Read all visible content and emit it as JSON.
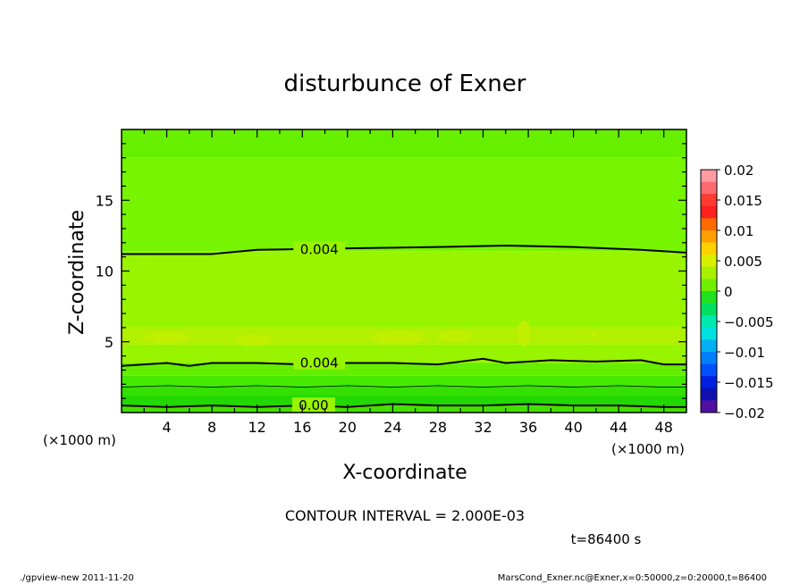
{
  "chart_data": {
    "type": "contour",
    "title": "disturbunce of Exner",
    "xlabel": "X-coordinate",
    "ylabel": "Z-coordinate",
    "x_unit_left": "(×1000 m)",
    "x_unit_right": "(×1000 m)",
    "xlim": [
      0,
      50
    ],
    "ylim": [
      0,
      20
    ],
    "xticks": [
      4,
      8,
      12,
      16,
      20,
      24,
      28,
      32,
      36,
      40,
      44,
      48
    ],
    "yticks": [
      5,
      10,
      15
    ],
    "contour_interval_text": "CONTOUR INTERVAL = 2.000E-03",
    "time_text": "t=86400 s",
    "footer_left": "./gpview-new  2011-11-20",
    "footer_right": "MarsCond_Exner.nc@Exner,x=0:50000,z=0:20000,t=86400",
    "contour_labels": [
      {
        "text": "0.004",
        "x": 17.5,
        "z": 11.5
      },
      {
        "text": "0.004",
        "x": 17.5,
        "z": 3.5
      },
      {
        "text": "0.00",
        "x": 17,
        "z": 0.5
      }
    ],
    "contour_lines": [
      {
        "level": 0.004,
        "style": "thick",
        "points": [
          [
            0,
            11.2
          ],
          [
            8,
            11.2
          ],
          [
            12,
            11.5
          ],
          [
            20,
            11.6
          ],
          [
            28,
            11.7
          ],
          [
            34,
            11.8
          ],
          [
            40,
            11.7
          ],
          [
            46,
            11.5
          ],
          [
            50,
            11.3
          ]
        ]
      },
      {
        "level": 0.004,
        "style": "thick",
        "points": [
          [
            0,
            3.3
          ],
          [
            4,
            3.5
          ],
          [
            6,
            3.3
          ],
          [
            8,
            3.5
          ],
          [
            12,
            3.5
          ],
          [
            16,
            3.4
          ],
          [
            20,
            3.5
          ],
          [
            24,
            3.5
          ],
          [
            28,
            3.4
          ],
          [
            32,
            3.8
          ],
          [
            34,
            3.5
          ],
          [
            38,
            3.7
          ],
          [
            42,
            3.6
          ],
          [
            46,
            3.7
          ],
          [
            48,
            3.4
          ],
          [
            50,
            3.4
          ]
        ]
      },
      {
        "level": 0.002,
        "style": "thin",
        "points": [
          [
            0,
            1.8
          ],
          [
            4,
            1.9
          ],
          [
            8,
            1.8
          ],
          [
            12,
            1.9
          ],
          [
            16,
            1.8
          ],
          [
            20,
            1.9
          ],
          [
            24,
            1.8
          ],
          [
            28,
            1.9
          ],
          [
            32,
            1.8
          ],
          [
            36,
            1.9
          ],
          [
            40,
            1.8
          ],
          [
            44,
            1.9
          ],
          [
            48,
            1.8
          ],
          [
            50,
            1.8
          ]
        ]
      },
      {
        "level": 0.0,
        "style": "thick",
        "points": [
          [
            0,
            0.5
          ],
          [
            4,
            0.4
          ],
          [
            8,
            0.5
          ],
          [
            12,
            0.4
          ],
          [
            16,
            0.5
          ],
          [
            20,
            0.4
          ],
          [
            24,
            0.6
          ],
          [
            28,
            0.5
          ],
          [
            32,
            0.5
          ],
          [
            36,
            0.6
          ],
          [
            40,
            0.5
          ],
          [
            44,
            0.5
          ],
          [
            48,
            0.4
          ],
          [
            50,
            0.4
          ]
        ]
      }
    ],
    "colorbar": {
      "labels": [
        "0.02",
        "0.015",
        "0.01",
        "0.005",
        "0",
        "−0.005",
        "−0.01",
        "−0.015",
        "−0.02"
      ],
      "levels": [
        0.02,
        0.018,
        0.016,
        0.014,
        0.012,
        0.01,
        0.008,
        0.006,
        0.004,
        0.002,
        0,
        -0.002,
        -0.004,
        -0.006,
        -0.008,
        -0.01,
        -0.012,
        -0.014,
        -0.016,
        -0.018,
        -0.02
      ],
      "colors": [
        "#ff9aa0",
        "#ff6a70",
        "#ff3a30",
        "#ff2020",
        "#ff6a00",
        "#ffa000",
        "#ffd000",
        "#d8f000",
        "#a6f000",
        "#70f000",
        "#20e020",
        "#00e060",
        "#00e8b0",
        "#00e0e0",
        "#00b0f0",
        "#0080ff",
        "#0050ff",
        "#0020e0",
        "#1010b0",
        "#5010a0"
      ]
    },
    "fill_bands": [
      {
        "z0": 18,
        "z1": 20,
        "color": "#66f000"
      },
      {
        "z0": 11.4,
        "z1": 18,
        "color": "#77f400"
      },
      {
        "z0": 6,
        "z1": 11.4,
        "color": "#99f400"
      },
      {
        "z0": 4.8,
        "z1": 6,
        "color": "#b0f000"
      },
      {
        "z0": 3.5,
        "z1": 4.8,
        "color": "#99f400"
      },
      {
        "z0": 2.6,
        "z1": 3.5,
        "color": "#66ee00"
      },
      {
        "z0": 1.9,
        "z1": 2.6,
        "color": "#44e800"
      },
      {
        "z0": 1.2,
        "z1": 1.9,
        "color": "#33e000"
      },
      {
        "z0": 0.5,
        "z1": 1.2,
        "color": "#22d800"
      },
      {
        "z0": 0,
        "z1": 0.5,
        "color": "#44e000"
      }
    ],
    "blobs": [
      {
        "x": 2,
        "z": 5.3,
        "w": 4,
        "h": 0.9,
        "color": "#c0f000"
      },
      {
        "x": 10,
        "z": 5.1,
        "w": 3.5,
        "h": 0.8,
        "color": "#c0f000"
      },
      {
        "x": 22,
        "z": 5.3,
        "w": 5,
        "h": 1.0,
        "color": "#c0f000"
      },
      {
        "x": 28,
        "z": 5.4,
        "w": 3,
        "h": 0.8,
        "color": "#c0f000"
      },
      {
        "x": 35,
        "z": 5.6,
        "w": 1.2,
        "h": 1.8,
        "color": "#c0f000"
      },
      {
        "x": 41.5,
        "z": 5.5,
        "w": 0.6,
        "h": 0.5,
        "color": "#c0f000"
      }
    ]
  }
}
